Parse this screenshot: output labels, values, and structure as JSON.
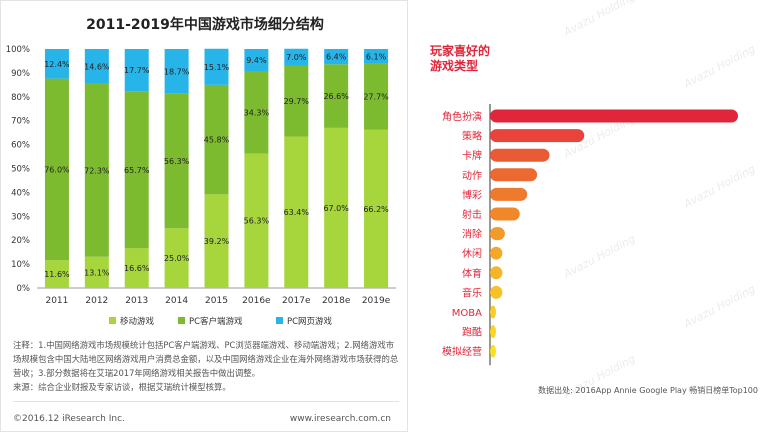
{
  "left": {
    "footnote_1": "注释：1.中国网络游戏市场规模统计包括PC客户端游戏、PC浏览器端游戏、移动端游戏；2.网络游戏市场规模包含中国大陆地区网络游戏用户消费总金额，以及中国网络游戏企业在海外网络游戏市场获得的总营收；3.部分数据将在艾瑞2017年网络游戏相关报告中做出调整。",
    "footnote_2": "来源：综合企业财报及专家访谈，根据艾瑞统计模型核算。",
    "copyright": "©2016.12 iResearch Inc.",
    "site": "www.iresearch.com.cn"
  },
  "right": {
    "title_line1": "玩家喜好的",
    "title_line2": "游戏类型",
    "source": "数据出处: 2016App Annie Google Play 畅销日榜单Top100",
    "watermark": "Avazu Holding"
  },
  "chart_data": [
    {
      "type": "bar",
      "stacked": true,
      "percent": true,
      "title": "2011-2019年中国游戏市场细分结构",
      "categories": [
        "2011",
        "2012",
        "2013",
        "2014",
        "2015",
        "2016e",
        "2017e",
        "2018e",
        "2019e"
      ],
      "series": [
        {
          "name": "移动游戏",
          "color": "#a7d53c",
          "values": [
            11.6,
            13.1,
            16.6,
            25.0,
            39.2,
            56.3,
            63.4,
            67.0,
            66.2
          ]
        },
        {
          "name": "PC客户端游戏",
          "color": "#7cbb2f",
          "values": [
            76.0,
            72.3,
            65.7,
            56.3,
            45.8,
            34.3,
            29.7,
            26.6,
            27.7
          ]
        },
        {
          "name": "PC网页游戏",
          "color": "#27b4e8",
          "values": [
            12.4,
            14.6,
            17.7,
            18.7,
            15.1,
            9.4,
            7.0,
            6.4,
            6.1
          ]
        }
      ],
      "ylim": [
        0,
        100
      ],
      "yticks": [
        "0%",
        "10%",
        "20%",
        "30%",
        "40%",
        "50%",
        "60%",
        "70%",
        "80%",
        "90%",
        "100%"
      ],
      "xlabel": "",
      "ylabel": ""
    },
    {
      "type": "bar",
      "orientation": "horizontal",
      "title": "玩家喜好的游戏类型",
      "categories": [
        "角色扮演",
        "策略",
        "卡牌",
        "动作",
        "博彩",
        "射击",
        "消除",
        "休闲",
        "体育",
        "音乐",
        "MOBA",
        "跑酷",
        "模拟经营"
      ],
      "values": [
        100,
        38,
        24,
        19,
        15,
        12,
        6,
        5,
        5,
        5,
        2,
        1,
        1
      ],
      "value_unit": "relative length (unlabeled)",
      "colors": [
        "#e0263a",
        "#e8443b",
        "#ea5a35",
        "#ec6a31",
        "#ee7a2d",
        "#f08829",
        "#f29a2a",
        "#f3a82a",
        "#f5b52a",
        "#f6c12a",
        "#f7cd2a",
        "#f8d62a",
        "#f9e02a"
      ]
    }
  ]
}
